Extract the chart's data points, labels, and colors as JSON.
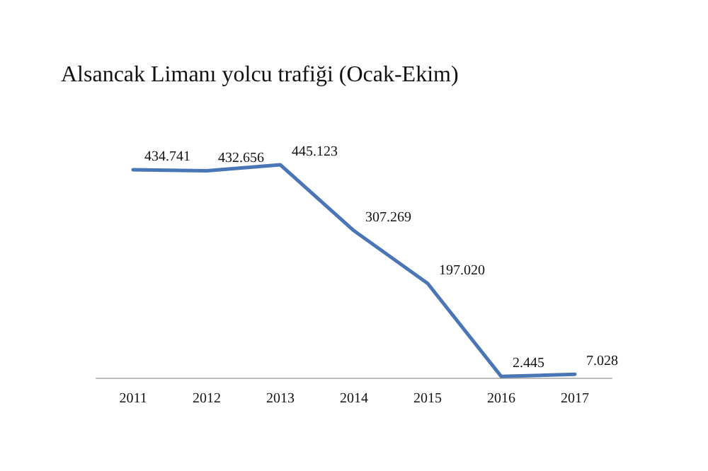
{
  "chart_data": {
    "type": "line",
    "title": "Alsancak Limanı yolcu trafiği (Ocak-Ekim)",
    "categories": [
      "2011",
      "2012",
      "2013",
      "2014",
      "2015",
      "2016",
      "2017"
    ],
    "series": [
      {
        "color": "#4a76b5",
        "values": [
          434741,
          432656,
          445123,
          307269,
          197020,
          2445,
          7028
        ],
        "value_labels": [
          "434.741",
          "432.656",
          "445.123",
          "307.269",
          "197.020",
          "2.445",
          "7.028"
        ]
      }
    ],
    "grid": false,
    "marker": "none",
    "line_style": "solid"
  }
}
